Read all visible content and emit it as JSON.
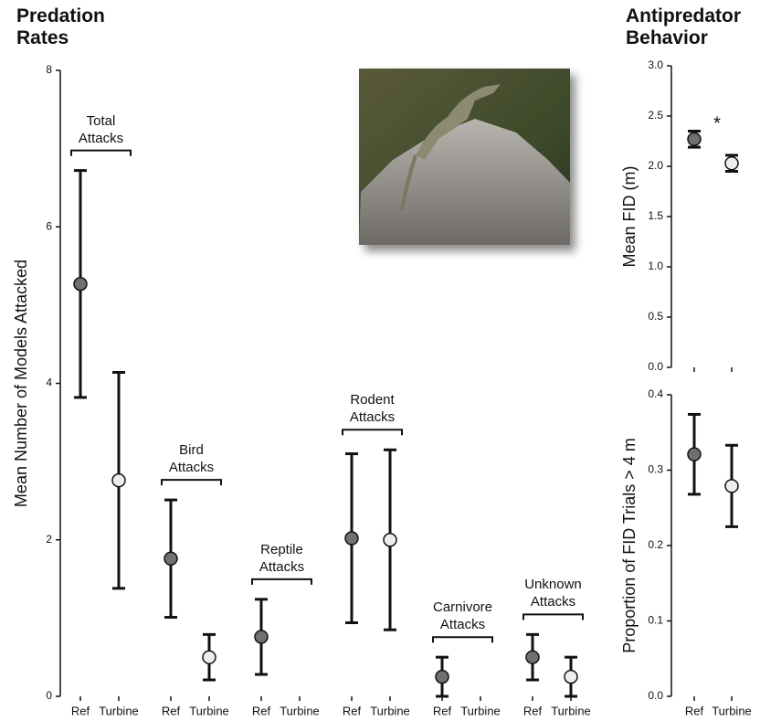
{
  "chart_data": [
    {
      "type": "errorbar",
      "title": "Predation Rates",
      "y_label": "Mean Number of Models Attacked",
      "categories": [
        "Ref",
        "Turbine",
        "Ref",
        "Turbine",
        "Ref",
        "Turbine",
        "Ref",
        "Turbine",
        "Ref",
        "Turbine",
        "Ref",
        "Turbine"
      ],
      "group_labels": [
        "Total Attacks",
        "Bird Attacks",
        "Reptile Attacks",
        "Rodent Attacks",
        "Carnivore Attacks",
        "Unknown Attacks"
      ],
      "values": [
        5.27,
        2.76,
        1.76,
        0.5,
        0.76,
        null,
        2.02,
        2.0,
        0.25,
        null,
        0.5,
        0.25
      ],
      "errors": [
        1.45,
        1.38,
        0.75,
        0.29,
        0.48,
        null,
        1.08,
        1.15,
        0.25,
        null,
        0.29,
        0.25
      ],
      "colors": [
        "#707070",
        "#eeeeee",
        "#707070",
        "#eeeeee",
        "#707070",
        "#eeeeee",
        "#707070",
        "#eeeeee",
        "#707070",
        "#eeeeee",
        "#707070",
        "#eeeeee"
      ],
      "ylim": [
        0,
        8
      ],
      "yticks": [
        0,
        2,
        4,
        6,
        8
      ]
    },
    {
      "type": "errorbar",
      "title": "Antipredator Behavior",
      "y_label": "Mean FID (m)",
      "values": [
        2.27,
        2.03
      ],
      "errors": [
        0.08,
        0.08
      ],
      "colors": [
        "#707070",
        "#eeeeee"
      ],
      "annotation": "*",
      "ylim": [
        0,
        3
      ],
      "yticks": [
        {
          "value": 0,
          "label": "0.0"
        },
        {
          "value": 0.5,
          "label": "0.5"
        },
        {
          "value": 1,
          "label": "1.0"
        },
        {
          "value": 1.5,
          "label": "1.5"
        },
        {
          "value": 2,
          "label": "2.0"
        },
        {
          "value": 2.5,
          "label": "2.5"
        },
        {
          "value": 3,
          "label": "3.0"
        }
      ]
    },
    {
      "type": "errorbar",
      "y_label": "Proportion of FID Trials > 4 m",
      "categories": [
        "Ref",
        "Turbine"
      ],
      "values": [
        0.321,
        0.279
      ],
      "errors": [
        0.053,
        0.054
      ],
      "colors": [
        "#707070",
        "#eeeeee"
      ],
      "ylim": [
        0,
        0.4
      ],
      "yticks": [
        {
          "value": 0,
          "label": "0.0"
        },
        0.1,
        0.2,
        0.3,
        0.4
      ]
    }
  ]
}
